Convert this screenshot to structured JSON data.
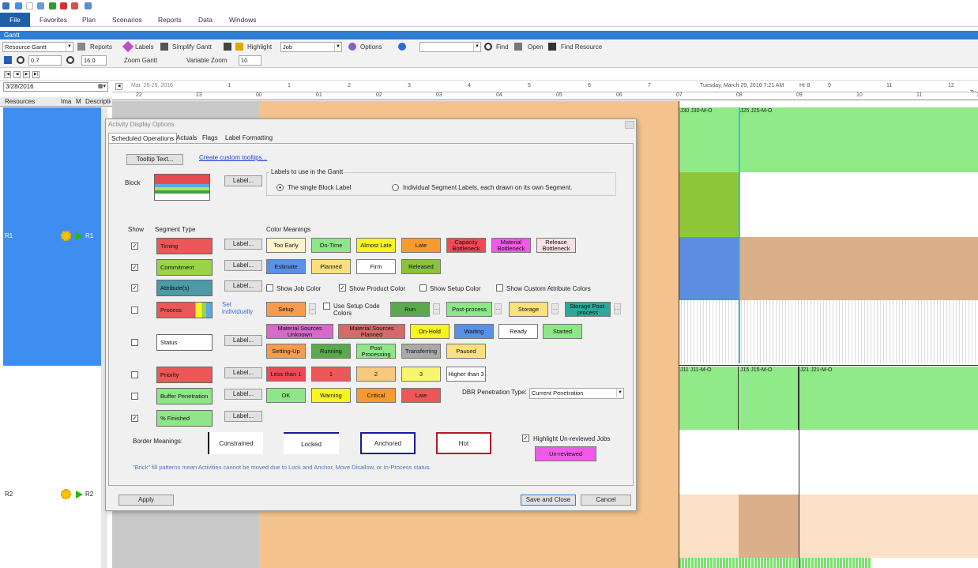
{
  "menubar": {
    "file": "File",
    "items": [
      "Favorites",
      "Plan",
      "Scenarios",
      "Reports",
      "Data",
      "Windows"
    ]
  },
  "gantt_title": "Gantt",
  "toolbar1": {
    "view_select": "Resource Gantt",
    "reports": "Reports",
    "labels": "Labels",
    "simplify": "Simplify Gantt",
    "highlight": "Highlight",
    "highlight_value": "Job",
    "options": "Options",
    "find": "Find",
    "open": "Open",
    "find_resource": "Find Resource"
  },
  "toolbar2": {
    "zoom_value": "0.7",
    "zoom2_value": "16.0",
    "zoom_gantt": "Zoom Gantt",
    "variable_zoom": "Variable Zoom",
    "variable_value": "10"
  },
  "date_value": "3/28/2016",
  "ruler": {
    "date_range": "Mar. 28-29, 2016",
    "top_ticks": [
      "-1",
      "1",
      "2",
      "3",
      "4",
      "5",
      "6",
      "7",
      "8",
      "9",
      "10",
      "11",
      "12"
    ],
    "now_label": "Tuesday, March 29, 2016 7:21 AM",
    "hr_label": "Hr 8",
    "tu": "Tu",
    "bottom_ticks": [
      "22",
      "23",
      "00",
      "01",
      "02",
      "03",
      "04",
      "05",
      "06",
      "07",
      "08",
      "09",
      "10",
      "11",
      "12"
    ]
  },
  "resources_header": [
    "Resources",
    "Ima",
    "M",
    "Description"
  ],
  "resources": [
    {
      "name": "R1",
      "alias": "R1"
    },
    {
      "name": "R2",
      "alias": "R2"
    }
  ],
  "gantt_labels": [
    "J30 J30-M-O",
    "J25 J25-M-O",
    "J11 J11-M-O",
    "J15 J15-M-O",
    "J21 J21-M-O"
  ],
  "dialog": {
    "title": "Activity Display Options",
    "tabs": [
      "Scheduled Operations",
      "Actuals",
      "Flags",
      "Label Formatting"
    ],
    "tooltip_btn": "Tooltip Text...",
    "custom_tooltips": "Create custom tooltips...",
    "block": "Block",
    "label_btn": "Label...",
    "labels_group": "Labels to use in the Gantt",
    "radio_single": "The single Block Label",
    "radio_individual": "Individual Segment Labels, each drawn on its own Segment.",
    "col_show": "Show",
    "col_segment": "Segment Type",
    "col_meanings": "Color Meanings",
    "segments": [
      "Timing",
      "Commitment",
      "Attribute(s)",
      "Process",
      "Status",
      "Priority",
      "Buffer Penetration",
      "% Finished"
    ],
    "set_individually": "Set individually",
    "timing_colors": [
      "Too Early",
      "On-Time",
      "Almost Late",
      "Late",
      "Capacity Bottleneck",
      "Material Bottleneck",
      "Release Bottleneck"
    ],
    "commit_colors": [
      "Estimate",
      "Planned",
      "Firm",
      "Released"
    ],
    "attr_checks": [
      "Show Job Color",
      "Show Product Color",
      "Show Setup Color",
      "Show Custom Attribute Colors"
    ],
    "process_colors": [
      "Setup",
      "Use Setup Code Colors",
      "Run",
      "Post-process",
      "Storage",
      "Storage Post-process"
    ],
    "status_colors": [
      "Material Sources Unknown",
      "Material Sources Planned",
      "On-Hold",
      "Waiting",
      "Ready",
      "Started",
      "Setting-Up",
      "Running",
      "Post Processing",
      "Transferring",
      "Paused"
    ],
    "priority_colors": [
      "Less than 1",
      "1",
      "2",
      "3",
      "Higher than 3"
    ],
    "buffer_colors": [
      "OK",
      "Warning",
      "Critical",
      "Late"
    ],
    "dbr_label": "DBR Penetration Type:",
    "dbr_value": "Current Penetration",
    "border_meanings": "Border Meanings:",
    "borders": [
      "Constrained",
      "Locked",
      "Anchored",
      "Hot"
    ],
    "highlight_unreviewed": "Highlight Un-reviewed Jobs",
    "unreviewed": "Un-reviewed",
    "brick_note": "\"Brick\" fill patterns mean Activities cannot be moved due to Lock and Anchor, Move Disallow, or In-Process status.",
    "apply": "Apply",
    "save_close": "Save and Close",
    "cancel": "Cancel"
  },
  "colors": {
    "accent": "#2d7dd2",
    "file_blue": "#1f5fa8",
    "gantt_green": "#90ea88",
    "resource_blue": "#3d8ef0"
  }
}
